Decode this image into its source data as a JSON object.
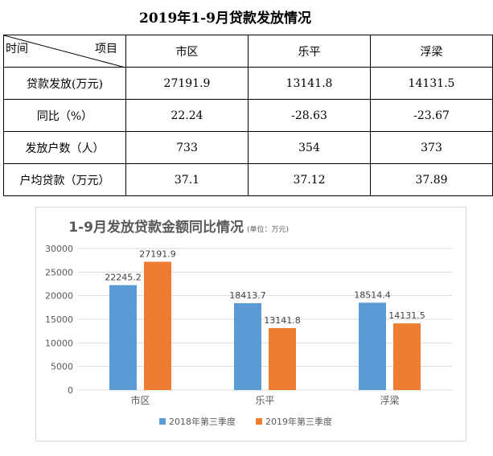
{
  "title": "2019年1-9月贷款发放情况",
  "table": {
    "header_left": "时间",
    "header_right": "项目",
    "columns": [
      "市区",
      "乐平",
      "浮梁"
    ],
    "rows": [
      {
        "label": "贷款发放(万元)",
        "values": [
          "27191.9",
          "13141.8",
          "14131.5"
        ]
      },
      {
        "label": "同比（%）",
        "values": [
          "22.24",
          "-28.63",
          "-23.67"
        ]
      },
      {
        "label": "发放户数（人）",
        "values": [
          "733",
          "354",
          "373"
        ]
      },
      {
        "label": "户均贷款（万元）",
        "values": [
          "37.1",
          "37.12",
          "37.89"
        ]
      }
    ]
  },
  "chart_data": {
    "type": "bar",
    "title": "1-9月发放贷款金额同比情况",
    "unit_note": "(单位：万元)",
    "categories": [
      "市区",
      "乐平",
      "浮梁"
    ],
    "series": [
      {
        "name": "2018年第三季度",
        "values": [
          22245.2,
          18413.7,
          18514.4
        ],
        "labels": [
          "22245.2",
          "18413.7",
          "18514.4"
        ],
        "color": "#5b9bd5"
      },
      {
        "name": "2019年第三季度",
        "values": [
          27191.9,
          13141.8,
          14131.5
        ],
        "labels": [
          "27191.9",
          "13141.8",
          "14131.5"
        ],
        "color": "#ed7d31"
      }
    ],
    "ylim": [
      0,
      30000
    ],
    "yticks": [
      0,
      5000,
      10000,
      15000,
      20000,
      25000,
      30000
    ],
    "grid": true,
    "legend_position": "bottom"
  }
}
